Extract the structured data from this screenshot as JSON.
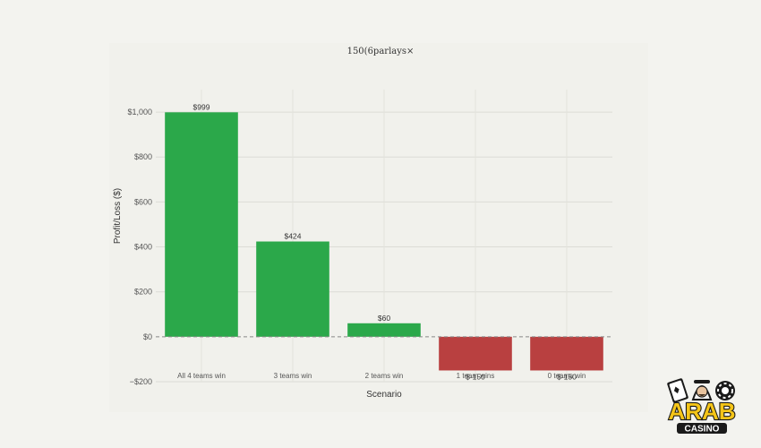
{
  "chart_data": {
    "type": "bar",
    "title": "150(6parlays×",
    "xlabel": "Scenario",
    "ylabel": "Profit/Loss ($)",
    "categories": [
      "All 4 teams win",
      "3 teams win",
      "2 teams win",
      "1 team wins",
      "0 teams win"
    ],
    "values": [
      999,
      424,
      60,
      -150,
      -150
    ],
    "data_labels": [
      "$999",
      "$424",
      "$60",
      "$-150",
      "$-150"
    ],
    "bar_colors": [
      "#2ba84a",
      "#2ba84a",
      "#2ba84a",
      "#b94040",
      "#b94040"
    ],
    "ylim": [
      -200,
      1100
    ],
    "yticks": [
      -200,
      0,
      200,
      400,
      600,
      800,
      1000
    ],
    "ytick_labels": [
      "−$200",
      "$0",
      "$200",
      "$400",
      "$600",
      "$800",
      "$1,000"
    ],
    "grid": true,
    "zero_line": "dashed"
  },
  "logo": {
    "brand_top": "ARAB",
    "brand_bottom": "CASINO",
    "colors": {
      "yellow": "#f5c518",
      "dark": "#1a1a1a"
    }
  }
}
